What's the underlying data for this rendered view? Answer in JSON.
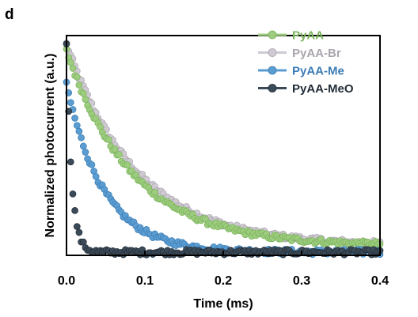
{
  "panel_label": "d",
  "chart_data": {
    "type": "scatter",
    "xlabel": "Time (ms)",
    "ylabel": "Normalized photocurrent (a.u.)",
    "xlim": [
      0.0,
      0.4
    ],
    "ylim": [
      0.0,
      1.03
    ],
    "x_ticks": [
      0.0,
      0.1,
      0.2,
      0.3,
      0.4
    ],
    "x_tick_labels": [
      "0.0",
      "0.1",
      "0.2",
      "0.3",
      "0.4"
    ],
    "y_ticks_labeled": false,
    "grid": false,
    "legend_position": "top-right",
    "series": [
      {
        "name": "PyAA",
        "color": "#9dcc7e",
        "edge_color": "#78b35a",
        "y0": 0.96,
        "tau_ms": 0.085,
        "baseline": 0.045
      },
      {
        "name": "PyAA-Br",
        "color": "#cfcad2",
        "edge_color": "#aaa4ae",
        "y0": 0.99,
        "tau_ms": 0.09,
        "baseline": 0.045
      },
      {
        "name": "PyAA-Me",
        "color": "#5b9dd1",
        "edge_color": "#3a7cb5",
        "y0": 0.8,
        "tau_ms": 0.048,
        "baseline": 0.015
      },
      {
        "name": "PyAA-MeO",
        "color": "#3b4a58",
        "edge_color": "#222d38",
        "y0": 1.0,
        "tau_ms": 0.0065,
        "baseline": 0.015
      }
    ]
  }
}
